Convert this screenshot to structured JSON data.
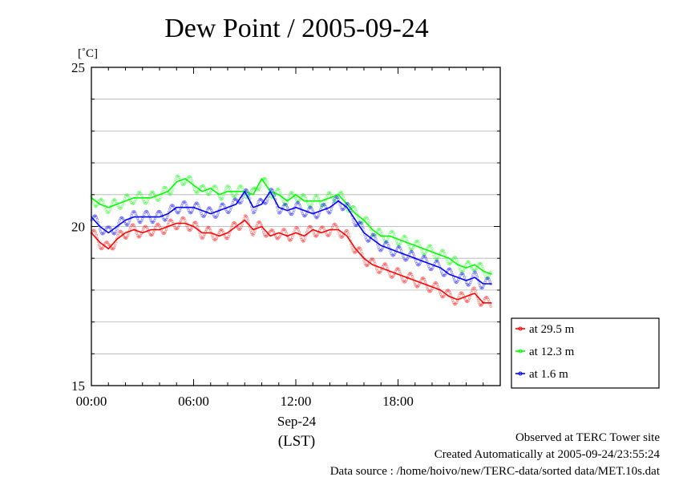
{
  "chart_data": {
    "type": "line",
    "title": "Dew Point / 2005-09-24",
    "ylabel": "[˚C]",
    "ylim": [
      15,
      25
    ],
    "y_ticks": [
      "25",
      "20",
      "15"
    ],
    "xlim": [
      0,
      24
    ],
    "x_ticks": [
      {
        "hour": 0,
        "label": "00:00"
      },
      {
        "hour": 6,
        "label": "06:00"
      },
      {
        "hour": 12,
        "label": "12:00"
      },
      {
        "hour": 18,
        "label": "18:00"
      }
    ],
    "x_sub_label": "Sep-24",
    "x_unit_label": "(LST)",
    "grid": true,
    "legend_placement": "right",
    "x": [
      0,
      0.5,
      1,
      1.5,
      2,
      2.5,
      3,
      3.5,
      4,
      4.5,
      5,
      5.5,
      6,
      6.5,
      7,
      7.5,
      8,
      8.5,
      9,
      9.5,
      10,
      10.5,
      11,
      11.5,
      12,
      12.5,
      13,
      13.5,
      14,
      14.5,
      15,
      15.5,
      16,
      16.5,
      17,
      17.5,
      18,
      18.5,
      19,
      19.5,
      20,
      20.5,
      21,
      21.5,
      22,
      22.5,
      23,
      23.5
    ],
    "series": [
      {
        "name": "at 29.5 m",
        "color": "#ff0000",
        "values": [
          19.8,
          19.5,
          19.3,
          19.6,
          19.8,
          19.9,
          19.8,
          19.9,
          19.9,
          20.0,
          20.1,
          20.1,
          20.0,
          19.8,
          19.8,
          19.7,
          19.8,
          20.0,
          20.2,
          19.9,
          20.0,
          19.7,
          19.8,
          19.7,
          19.8,
          19.7,
          19.9,
          19.8,
          19.9,
          19.9,
          19.7,
          19.3,
          19.0,
          18.8,
          18.7,
          18.6,
          18.5,
          18.4,
          18.3,
          18.2,
          18.1,
          18.0,
          17.8,
          17.7,
          17.8,
          17.9,
          17.6,
          17.6
        ]
      },
      {
        "name": "at 12.3 m",
        "color": "#00ff00",
        "values": [
          20.9,
          20.7,
          20.6,
          20.7,
          20.8,
          20.9,
          20.9,
          20.9,
          21.0,
          21.1,
          21.4,
          21.5,
          21.3,
          21.1,
          21.2,
          21.0,
          21.1,
          21.1,
          21.1,
          21.0,
          21.5,
          21.1,
          21.0,
          20.8,
          21.0,
          20.8,
          20.8,
          20.8,
          20.9,
          21.0,
          20.7,
          20.4,
          20.2,
          19.9,
          19.7,
          19.7,
          19.6,
          19.5,
          19.4,
          19.3,
          19.2,
          19.1,
          19.0,
          18.8,
          18.7,
          18.8,
          18.6,
          18.5
        ]
      },
      {
        "name": "at 1.6 m",
        "color": "#0000ff",
        "values": [
          20.3,
          20.0,
          19.8,
          20.0,
          20.2,
          20.3,
          20.3,
          20.3,
          20.3,
          20.4,
          20.6,
          20.6,
          20.6,
          20.5,
          20.4,
          20.5,
          20.6,
          20.7,
          21.1,
          20.6,
          20.7,
          21.1,
          20.6,
          20.5,
          20.6,
          20.5,
          20.4,
          20.5,
          20.6,
          20.8,
          20.6,
          20.2,
          19.8,
          19.6,
          19.4,
          19.3,
          19.2,
          19.1,
          19.0,
          18.9,
          18.8,
          18.7,
          18.5,
          18.4,
          18.3,
          18.4,
          18.2,
          18.2
        ]
      }
    ]
  },
  "footer": {
    "line1": "Observed at TERC Tower site",
    "line2": "Created Automatically at 2005-09-24/23:55:24",
    "line3": "Data source : /home/hoivo/new/TERC-data/sorted  data/MET.10s.dat"
  }
}
